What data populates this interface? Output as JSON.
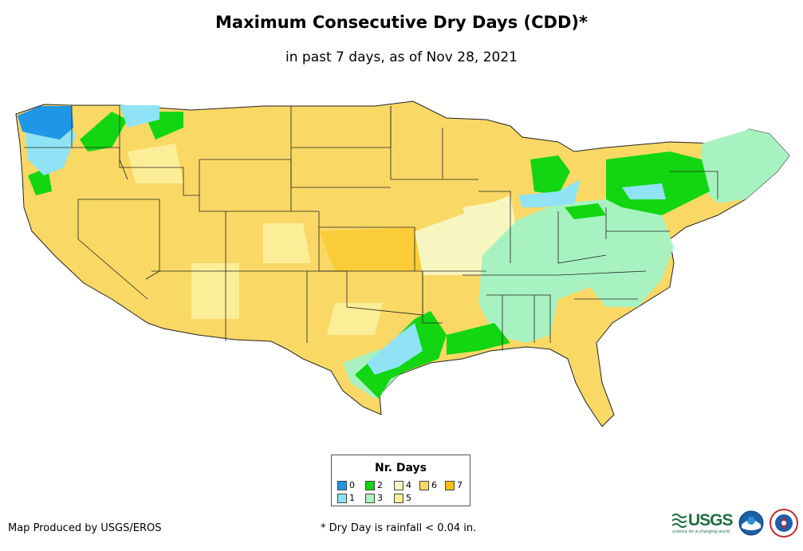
{
  "title": "Maximum Consecutive Dry Days (CDD)*",
  "subtitle": "in past 7 days, as of Nov 28, 2021",
  "legend": {
    "title": "Nr. Days",
    "items": [
      {
        "label": "0",
        "color": "#1f97e6"
      },
      {
        "label": "1",
        "color": "#8fe3f5"
      },
      {
        "label": "2",
        "color": "#11d611"
      },
      {
        "label": "3",
        "color": "#a8f2c1"
      },
      {
        "label": "4",
        "color": "#f8f6c0"
      },
      {
        "label": "5",
        "color": "#fcee96"
      },
      {
        "label": "6",
        "color": "#f9d866"
      },
      {
        "label": "7",
        "color": "#fac000"
      }
    ]
  },
  "footer": {
    "producer": "Map Produced by USGS/EROS",
    "note": "* Dry Day is rainfall < 0.04 in."
  },
  "logos": {
    "usgs": "USGS",
    "usgs_tagline": "science for a changing world",
    "noaa": "noaa",
    "nws": "NWS"
  }
}
